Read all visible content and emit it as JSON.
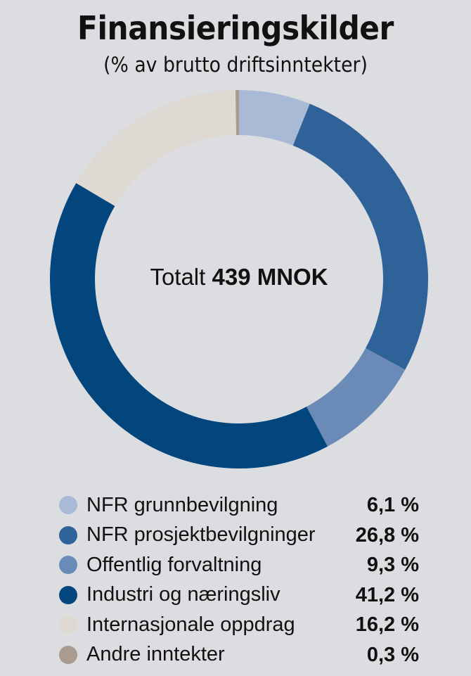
{
  "header": {
    "title": "Finansieringskilder",
    "subtitle": "(% av brutto driftsinntekter)"
  },
  "center": {
    "prefix": "Totalt ",
    "total": "439 MNOK"
  },
  "legend": [
    {
      "label": "NFR grunnbevilgning",
      "value": "6,1 %",
      "color": "#a9bad7"
    },
    {
      "label": "NFR prosjektbevilgninger",
      "value": "26,8 %",
      "color": "#2f6298"
    },
    {
      "label": "Offentlig forvaltning",
      "value": "9,3 %",
      "color": "#6a8bb7"
    },
    {
      "label": "Industri og næringsliv",
      "value": "41,2 %",
      "color": "#03457d"
    },
    {
      "label": "Internasjonale oppdrag",
      "value": "16,2 %",
      "color": "#dedad3"
    },
    {
      "label": "Andre inntekter",
      "value": "0,3 %",
      "color": "#a99b8f"
    }
  ],
  "chart_data": {
    "type": "pie",
    "title": "Finansieringskilder",
    "subtitle": "(% av brutto driftsinntekter)",
    "center_text": "Totalt 439 MNOK",
    "donut": true,
    "start_angle_deg": 0,
    "direction": "clockwise",
    "legend_position": "bottom",
    "categories": [
      "NFR grunnbevilgning",
      "NFR prosjektbevilgninger",
      "Offentlig forvaltning",
      "Industri og næringsliv",
      "Internasjonale oppdrag",
      "Andre inntekter"
    ],
    "values": [
      6.1,
      26.8,
      9.3,
      41.2,
      16.2,
      0.3
    ],
    "colors": [
      "#a9bad7",
      "#2f6298",
      "#6a8bb7",
      "#03457d",
      "#dedad3",
      "#a99b8f"
    ],
    "unit": "%"
  }
}
